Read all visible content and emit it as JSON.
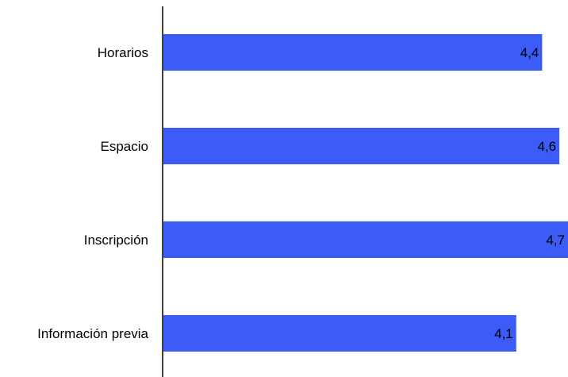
{
  "chart_data": {
    "type": "bar",
    "orientation": "horizontal",
    "categories": [
      "Horarios",
      "Espacio",
      "Inscripción",
      "Información previa"
    ],
    "values": [
      4.4,
      4.6,
      4.7,
      4.1
    ],
    "value_labels": [
      "4,4",
      "4,6",
      "4,7",
      "4,1"
    ],
    "title": "",
    "xlabel": "",
    "ylabel": "",
    "xlim": [
      0,
      4.7
    ],
    "grid": false,
    "legend": "none",
    "bar_color": "#3b5cf6",
    "axis_color": "#000000"
  }
}
